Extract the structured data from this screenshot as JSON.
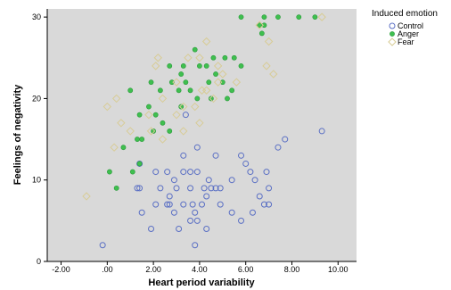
{
  "chart_data": {
    "type": "scatter",
    "title": "",
    "xlabel": "Heart period variability",
    "ylabel": "Feelings of negativity",
    "xlim": [
      -2.6,
      10.8
    ],
    "ylim": [
      0,
      31
    ],
    "x_ticks": [
      -2,
      0,
      2,
      4,
      6,
      8,
      10
    ],
    "x_tick_labels": [
      "-2.00",
      ".00",
      "2.00",
      "4.00",
      "6.00",
      "8.00",
      "10.00"
    ],
    "y_ticks": [
      0,
      10,
      20,
      30
    ],
    "y_tick_labels": [
      "0",
      "10",
      "20",
      "30"
    ],
    "grid": false,
    "plot_background": "#d9d9d9",
    "legend": {
      "title": "Induced emotion",
      "placement": "right"
    },
    "series": [
      {
        "name": "Control",
        "marker": "circle-open",
        "color": "#5a6fc4",
        "points": [
          [
            3.4,
            18
          ],
          [
            5.8,
            13
          ],
          [
            7.7,
            15
          ],
          [
            9.3,
            16
          ],
          [
            7.4,
            14
          ],
          [
            3.9,
            14
          ],
          [
            3.3,
            13
          ],
          [
            4.7,
            13
          ],
          [
            6.0,
            12
          ],
          [
            1.4,
            12
          ],
          [
            6.9,
            11
          ],
          [
            6.2,
            11
          ],
          [
            2.1,
            11
          ],
          [
            2.6,
            11
          ],
          [
            3.3,
            11
          ],
          [
            3.6,
            11
          ],
          [
            3.9,
            11
          ],
          [
            2.9,
            10
          ],
          [
            4.4,
            10
          ],
          [
            5.4,
            10
          ],
          [
            6.4,
            10
          ],
          [
            7.0,
            9
          ],
          [
            1.3,
            9
          ],
          [
            1.4,
            9
          ],
          [
            2.3,
            9
          ],
          [
            3.0,
            9
          ],
          [
            3.6,
            9
          ],
          [
            4.2,
            9
          ],
          [
            4.5,
            9
          ],
          [
            4.7,
            9
          ],
          [
            4.9,
            9
          ],
          [
            6.6,
            8
          ],
          [
            2.7,
            8
          ],
          [
            4.3,
            8
          ],
          [
            2.1,
            7
          ],
          [
            2.6,
            7
          ],
          [
            2.7,
            7
          ],
          [
            3.3,
            7
          ],
          [
            3.7,
            7
          ],
          [
            4.1,
            7
          ],
          [
            4.9,
            7
          ],
          [
            6.8,
            7
          ],
          [
            7.0,
            7
          ],
          [
            1.5,
            6
          ],
          [
            2.9,
            6
          ],
          [
            3.8,
            6
          ],
          [
            5.4,
            6
          ],
          [
            6.3,
            6
          ],
          [
            3.6,
            5
          ],
          [
            3.9,
            5
          ],
          [
            5.8,
            5
          ],
          [
            1.9,
            4
          ],
          [
            3.1,
            4
          ],
          [
            4.3,
            4
          ],
          [
            -0.2,
            2
          ],
          [
            3.8,
            2
          ]
        ]
      },
      {
        "name": "Anger",
        "marker": "circle-filled",
        "color": "#3fbf4f",
        "points": [
          [
            5.8,
            30
          ],
          [
            6.8,
            30
          ],
          [
            7.4,
            30
          ],
          [
            8.3,
            30
          ],
          [
            9.0,
            30
          ],
          [
            6.6,
            29
          ],
          [
            6.8,
            29
          ],
          [
            6.7,
            28
          ],
          [
            3.8,
            26
          ],
          [
            4.6,
            25
          ],
          [
            5.1,
            25
          ],
          [
            5.5,
            25
          ],
          [
            2.7,
            24
          ],
          [
            3.3,
            24
          ],
          [
            4.0,
            24
          ],
          [
            4.3,
            24
          ],
          [
            5.8,
            24
          ],
          [
            3.2,
            23
          ],
          [
            4.7,
            23
          ],
          [
            1.9,
            22
          ],
          [
            2.8,
            22
          ],
          [
            3.4,
            22
          ],
          [
            4.4,
            22
          ],
          [
            5.0,
            22
          ],
          [
            3.1,
            21
          ],
          [
            3.6,
            21
          ],
          [
            5.4,
            21
          ],
          [
            1.0,
            21
          ],
          [
            2.3,
            21
          ],
          [
            3.9,
            20
          ],
          [
            4.5,
            20
          ],
          [
            5.2,
            20
          ],
          [
            1.8,
            19
          ],
          [
            3.2,
            19
          ],
          [
            1.4,
            18
          ],
          [
            2.1,
            18
          ],
          [
            2.4,
            17
          ],
          [
            2.0,
            16
          ],
          [
            2.7,
            16
          ],
          [
            1.3,
            15
          ],
          [
            1.5,
            15
          ],
          [
            0.7,
            14
          ],
          [
            1.4,
            12
          ],
          [
            1.1,
            11
          ],
          [
            0.1,
            11
          ],
          [
            0.4,
            9
          ]
        ]
      },
      {
        "name": "Fear",
        "marker": "diamond-open",
        "color": "#d8cc96",
        "points": [
          [
            9.3,
            30
          ],
          [
            6.6,
            29
          ],
          [
            7.0,
            27
          ],
          [
            4.3,
            27
          ],
          [
            3.5,
            25
          ],
          [
            2.2,
            25
          ],
          [
            4.0,
            25
          ],
          [
            6.9,
            24
          ],
          [
            4.8,
            24
          ],
          [
            2.1,
            24
          ],
          [
            7.2,
            23
          ],
          [
            5.0,
            23
          ],
          [
            3.0,
            22
          ],
          [
            4.8,
            22
          ],
          [
            5.6,
            22
          ],
          [
            4.1,
            21
          ],
          [
            4.3,
            21
          ],
          [
            2.4,
            20
          ],
          [
            0.4,
            20
          ],
          [
            4.6,
            20
          ],
          [
            3.3,
            19
          ],
          [
            3.8,
            19
          ],
          [
            0.0,
            19
          ],
          [
            1.8,
            18
          ],
          [
            3.0,
            18
          ],
          [
            4.0,
            17
          ],
          [
            0.6,
            17
          ],
          [
            1.9,
            16
          ],
          [
            1.0,
            16
          ],
          [
            3.3,
            16
          ],
          [
            2.4,
            15
          ],
          [
            0.3,
            14
          ],
          [
            -0.9,
            8
          ]
        ]
      }
    ]
  }
}
